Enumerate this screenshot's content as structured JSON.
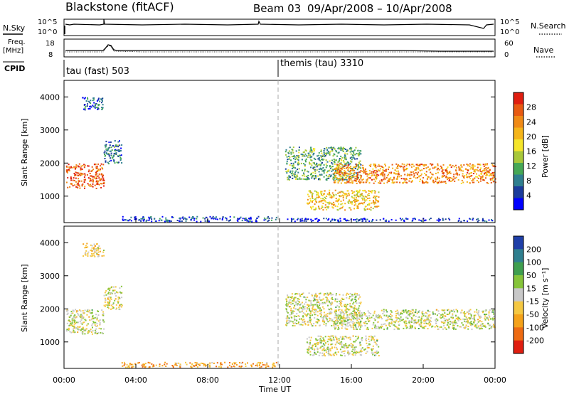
{
  "header": {
    "radar": "Blackstone (fitACF)",
    "beam": "Beam 03",
    "dates": "09/Apr/2008 – 10/Apr/2008"
  },
  "labels": {
    "nsky": "N.Sky",
    "nsearch": "N.Search",
    "freq": "Freq.",
    "mhz": "[MHz]",
    "nave": "Nave",
    "cpid": "CPID",
    "noise_top_left": "10^5",
    "noise_bottom_left": "10^0",
    "noise_top_right": "10^5",
    "noise_bottom_right": "10^0",
    "freq_top": "18",
    "freq_bottom": "8",
    "nave_top": "60",
    "nave_bottom": "0"
  },
  "cpid_blocks": [
    {
      "time_h": 0,
      "label": "tau (fast) 503"
    },
    {
      "time_h": 12,
      "label": "themis (tau) 3310"
    }
  ],
  "chart_data": [
    {
      "type": "heatmap",
      "name": "power",
      "ylabel": "Slant Range [km]",
      "xlabel": "",
      "ylim": [
        200,
        4500
      ],
      "yticks": [
        1000,
        2000,
        3000,
        4000
      ],
      "xlim": [
        0,
        24
      ],
      "colorbar": {
        "label": "Power [dB]",
        "ticks": [
          "4",
          "8",
          "12",
          "16",
          "20",
          "24",
          "28"
        ],
        "colors": [
          "#0000ff",
          "#1b3c9c",
          "#2f7f8f",
          "#46a856",
          "#a8c83a",
          "#f5e52a",
          "#f5b51a",
          "#f08a16",
          "#e85a12",
          "#e01e10"
        ]
      },
      "echo_regions": [
        {
          "t0": 0.1,
          "t1": 2.2,
          "r0": 1250,
          "r1": 2000,
          "level": 0.85
        },
        {
          "t0": 1.0,
          "t1": 2.2,
          "r0": 3600,
          "r1": 4000,
          "level": 0.2
        },
        {
          "t0": 2.2,
          "t1": 3.2,
          "r0": 2000,
          "r1": 2700,
          "level": 0.25
        },
        {
          "t0": 3.2,
          "t1": 11.8,
          "r0": 250,
          "r1": 400,
          "level": 0.15
        },
        {
          "t0": 12.3,
          "t1": 16.5,
          "r0": 1500,
          "r1": 2500,
          "level": 0.35
        },
        {
          "t0": 13.5,
          "t1": 17.5,
          "r0": 600,
          "r1": 1200,
          "level": 0.6
        },
        {
          "t0": 15.0,
          "t1": 24.0,
          "r0": 1400,
          "r1": 2000,
          "level": 0.75
        },
        {
          "t0": 12.3,
          "t1": 24.0,
          "r0": 250,
          "r1": 350,
          "level": 0.1
        }
      ]
    },
    {
      "type": "heatmap",
      "name": "velocity",
      "ylabel": "Slant Range [km]",
      "xlabel": "Time UT",
      "ylim": [
        200,
        4500
      ],
      "yticks": [
        1000,
        2000,
        3000,
        4000
      ],
      "xlim": [
        0,
        24
      ],
      "xticks": [
        "00:00",
        "04:00",
        "08:00",
        "12:00",
        "16:00",
        "20:00",
        "00:00"
      ],
      "colorbar": {
        "label": "Velocity [m s⁻¹]",
        "ticks": [
          "200",
          "100",
          "50",
          "15",
          "-15",
          "-50",
          "-100",
          "-200"
        ],
        "colors": [
          "#1f3fa8",
          "#2f7f8f",
          "#3f9f4f",
          "#86c43a",
          "#c8c8c8",
          "#f5c842",
          "#f5a21a",
          "#ee6b12",
          "#e01e10"
        ]
      },
      "echo_regions": [
        {
          "t0": 0.1,
          "t1": 2.2,
          "r0": 1250,
          "r1": 2000,
          "level": 0.5
        },
        {
          "t0": 1.0,
          "t1": 2.2,
          "r0": 3600,
          "r1": 4000,
          "level": 0.6
        },
        {
          "t0": 2.2,
          "t1": 3.2,
          "r0": 2000,
          "r1": 2700,
          "level": 0.5
        },
        {
          "t0": 3.2,
          "t1": 11.8,
          "r0": 250,
          "r1": 400,
          "level": 0.7
        },
        {
          "t0": 12.3,
          "t1": 16.5,
          "r0": 1500,
          "r1": 2500,
          "level": 0.5
        },
        {
          "t0": 13.5,
          "t1": 17.5,
          "r0": 600,
          "r1": 1200,
          "level": 0.5
        },
        {
          "t0": 15.0,
          "t1": 24.0,
          "r0": 1400,
          "r1": 2000,
          "level": 0.5
        }
      ]
    }
  ]
}
